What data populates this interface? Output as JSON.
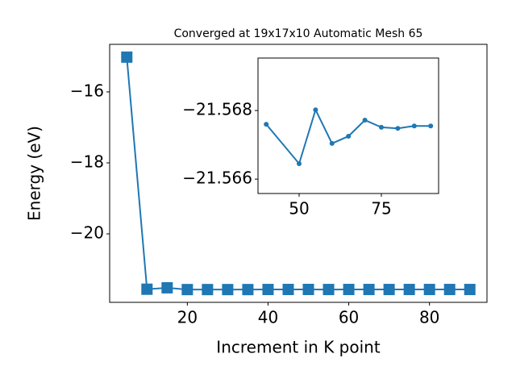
{
  "chart_data": [
    {
      "type": "line",
      "title": "Converged at 19x17x10 Automatic Mesh 65",
      "x_label": "Increment in K point",
      "y_label": "Energy (eV)",
      "x": [
        5,
        10,
        15,
        20,
        25,
        30,
        35,
        40,
        45,
        50,
        55,
        60,
        65,
        70,
        75,
        80,
        85,
        90
      ],
      "series": [
        {
          "color": "#1f77b4",
          "marker": "square",
          "values": [
            -15.02,
            -21.56,
            -21.52,
            -21.57,
            -21.57,
            -21.57,
            -21.57,
            -21.5676,
            -21.567,
            -21.56645,
            -21.56802,
            -21.56704,
            -21.56725,
            -21.56772,
            -21.56751,
            -21.56748,
            -21.56755,
            -21.56755
          ]
        }
      ],
      "xlim": [
        0.75,
        94.25
      ],
      "ylim": [
        -21.93,
        -14.66
      ],
      "xticks": [
        20,
        40,
        60,
        80
      ],
      "yticks": [
        {
          "value": -16,
          "label": "−16"
        },
        {
          "value": -18,
          "label": "−18"
        },
        {
          "value": -20,
          "label": "−20"
        }
      ]
    },
    {
      "type": "line",
      "x": [
        40,
        50,
        55,
        60,
        65,
        70,
        75,
        80,
        85,
        90
      ],
      "series": [
        {
          "color": "#1f77b4",
          "marker": "circle",
          "values": [
            -21.5676,
            -21.56645,
            -21.56802,
            -21.56704,
            -21.56725,
            -21.56772,
            -21.56751,
            -21.56748,
            -21.56755,
            -21.56755
          ]
        }
      ],
      "xlim": [
        37.5,
        92.4
      ],
      "ylim": [
        -21.56558,
        -21.56953
      ],
      "xticks": [
        50,
        75
      ],
      "yticks": [
        {
          "value": -21.568,
          "label": "−21.568"
        },
        {
          "value": -21.566,
          "label": "−21.566"
        }
      ]
    }
  ]
}
